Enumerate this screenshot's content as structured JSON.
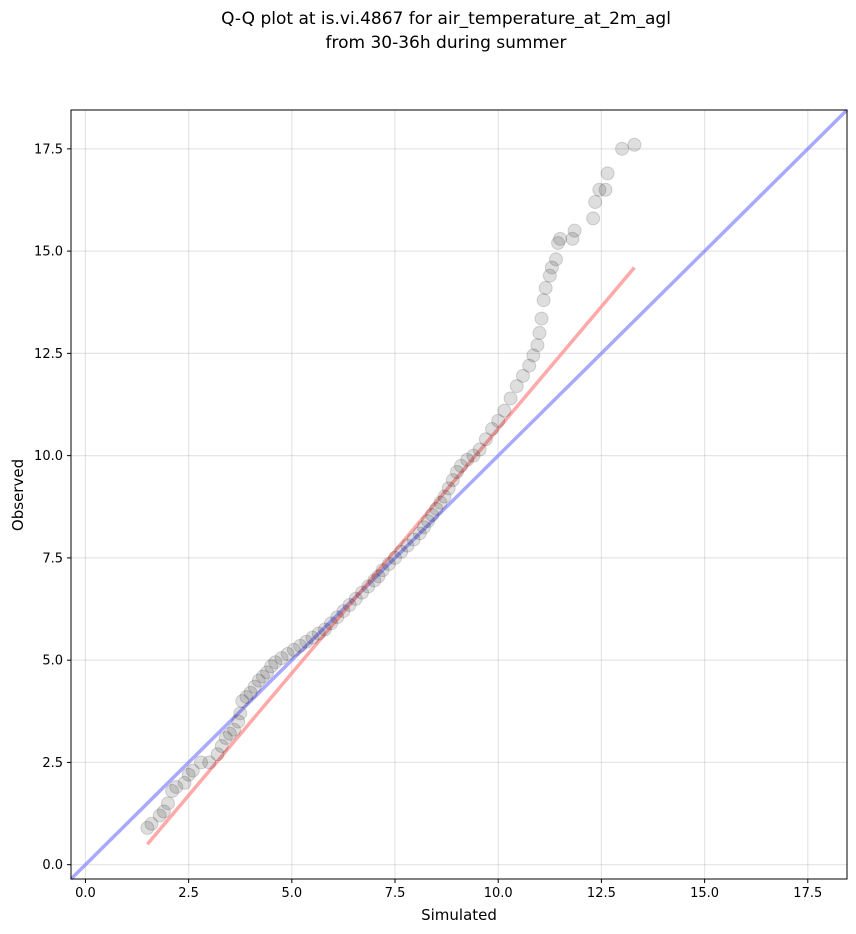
{
  "chart_data": {
    "type": "scatter",
    "title": [
      "Q-Q plot at is.vi.4867 for air_temperature_at_2m_agl",
      "from 30-36h during summer"
    ],
    "xlabel": "Simulated",
    "ylabel": "Observed",
    "xlim": [
      -0.35,
      18.45
    ],
    "ylim": [
      -0.35,
      18.45
    ],
    "xticks": [
      "0.0",
      "2.5",
      "5.0",
      "7.5",
      "10.0",
      "12.5",
      "15.0",
      "17.5"
    ],
    "yticks": [
      "0.0",
      "2.5",
      "5.0",
      "7.5",
      "10.0",
      "12.5",
      "15.0",
      "17.5"
    ],
    "grid": true,
    "point_color": "#000000",
    "identity_line_color": "#7b7bff",
    "fit_line_color": "#ff8c8c",
    "identity_line": [
      [
        -0.35,
        -0.35
      ],
      [
        18.45,
        18.45
      ]
    ],
    "fit_line": [
      [
        1.5,
        0.5
      ],
      [
        13.3,
        14.6
      ]
    ],
    "points": [
      [
        1.5,
        0.9
      ],
      [
        1.6,
        1.0
      ],
      [
        1.8,
        1.2
      ],
      [
        1.9,
        1.3
      ],
      [
        2.0,
        1.5
      ],
      [
        2.1,
        1.8
      ],
      [
        2.2,
        1.9
      ],
      [
        2.4,
        2.0
      ],
      [
        2.5,
        2.2
      ],
      [
        2.6,
        2.3
      ],
      [
        2.8,
        2.5
      ],
      [
        3.0,
        2.5
      ],
      [
        3.2,
        2.7
      ],
      [
        3.3,
        2.9
      ],
      [
        3.4,
        3.1
      ],
      [
        3.5,
        3.2
      ],
      [
        3.6,
        3.3
      ],
      [
        3.7,
        3.5
      ],
      [
        3.75,
        3.7
      ],
      [
        3.8,
        4.0
      ],
      [
        3.9,
        4.1
      ],
      [
        4.0,
        4.2
      ],
      [
        4.1,
        4.35
      ],
      [
        4.2,
        4.5
      ],
      [
        4.3,
        4.6
      ],
      [
        4.4,
        4.7
      ],
      [
        4.5,
        4.85
      ],
      [
        4.6,
        4.95
      ],
      [
        4.75,
        5.05
      ],
      [
        4.9,
        5.15
      ],
      [
        5.05,
        5.25
      ],
      [
        5.2,
        5.35
      ],
      [
        5.35,
        5.45
      ],
      [
        5.5,
        5.55
      ],
      [
        5.65,
        5.65
      ],
      [
        5.8,
        5.75
      ],
      [
        5.95,
        5.9
      ],
      [
        6.1,
        6.05
      ],
      [
        6.25,
        6.2
      ],
      [
        6.4,
        6.35
      ],
      [
        6.55,
        6.5
      ],
      [
        6.7,
        6.65
      ],
      [
        6.85,
        6.8
      ],
      [
        7.0,
        6.95
      ],
      [
        7.1,
        7.05
      ],
      [
        7.2,
        7.2
      ],
      [
        7.35,
        7.35
      ],
      [
        7.5,
        7.5
      ],
      [
        7.65,
        7.65
      ],
      [
        7.8,
        7.8
      ],
      [
        7.95,
        7.95
      ],
      [
        8.1,
        8.1
      ],
      [
        8.2,
        8.25
      ],
      [
        8.3,
        8.4
      ],
      [
        8.4,
        8.55
      ],
      [
        8.5,
        8.7
      ],
      [
        8.6,
        8.85
      ],
      [
        8.7,
        9.0
      ],
      [
        8.8,
        9.2
      ],
      [
        8.9,
        9.4
      ],
      [
        9.0,
        9.6
      ],
      [
        9.1,
        9.75
      ],
      [
        9.25,
        9.9
      ],
      [
        9.4,
        10.0
      ],
      [
        9.55,
        10.15
      ],
      [
        9.7,
        10.4
      ],
      [
        9.85,
        10.65
      ],
      [
        10.0,
        10.85
      ],
      [
        10.15,
        11.1
      ],
      [
        10.3,
        11.4
      ],
      [
        10.45,
        11.7
      ],
      [
        10.6,
        11.95
      ],
      [
        10.75,
        12.2
      ],
      [
        10.85,
        12.45
      ],
      [
        10.95,
        12.7
      ],
      [
        11.0,
        13.0
      ],
      [
        11.05,
        13.35
      ],
      [
        11.1,
        13.8
      ],
      [
        11.15,
        14.1
      ],
      [
        11.25,
        14.4
      ],
      [
        11.3,
        14.6
      ],
      [
        11.4,
        14.8
      ],
      [
        11.45,
        15.2
      ],
      [
        11.5,
        15.3
      ],
      [
        11.8,
        15.3
      ],
      [
        11.85,
        15.5
      ],
      [
        12.3,
        15.8
      ],
      [
        12.35,
        16.2
      ],
      [
        12.45,
        16.5
      ],
      [
        12.6,
        16.5
      ],
      [
        12.65,
        16.9
      ],
      [
        13.0,
        17.5
      ],
      [
        13.3,
        17.6
      ]
    ]
  }
}
